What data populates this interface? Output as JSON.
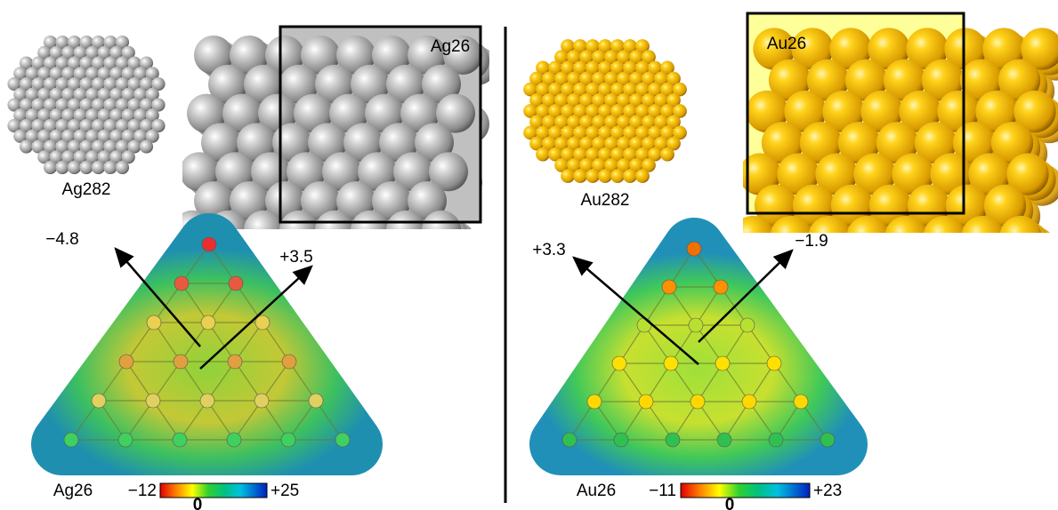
{
  "panels": [
    {
      "cluster_label": "Ag282",
      "box_label": "Ag26",
      "arrows": [
        {
          "label": "−4.8"
        },
        {
          "label": "+3.5"
        }
      ],
      "caption": "Ag26",
      "scale": {
        "min": "−12",
        "max": "+25",
        "zero": "0"
      }
    },
    {
      "cluster_label": "Au282",
      "box_label": "Au26",
      "arrows": [
        {
          "label": "+3.3"
        },
        {
          "label": "−1.9"
        }
      ],
      "caption": "Au26",
      "scale": {
        "min": "−11",
        "max": "+23",
        "zero": "0"
      }
    }
  ]
}
